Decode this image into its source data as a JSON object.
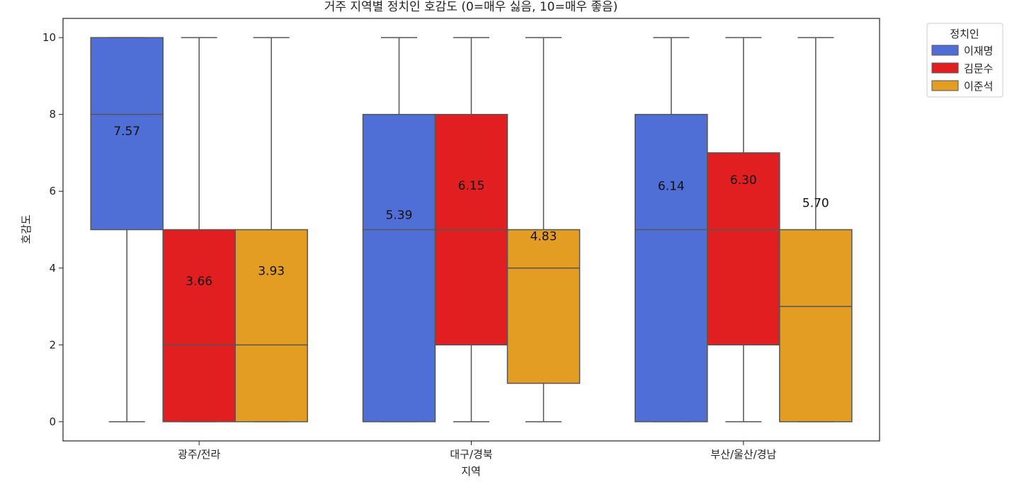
{
  "chart_data": {
    "type": "box",
    "title": "거주 지역별 정치인 호감도 (0=매우 싫음, 10=매우 좋음)",
    "xlabel": "지역",
    "ylabel": "호감도",
    "ylim": [
      -0.5,
      10.5
    ],
    "yticks": [
      "0",
      "2",
      "4",
      "6",
      "8",
      "10"
    ],
    "grid": false,
    "categories": [
      "광주/전라",
      "대구/경북",
      "부산/울산/경남"
    ],
    "legend": {
      "title": "정치인",
      "placement": "outside-top-right"
    },
    "series": [
      {
        "name": "이재명",
        "color": "#4f6fd6",
        "boxes": [
          {
            "min": 0,
            "q1": 5,
            "median": 8,
            "q3": 10,
            "max": 10,
            "mean_label": "7.57",
            "mean": 7.57
          },
          {
            "min": 0,
            "q1": 0,
            "median": 5,
            "q3": 8,
            "max": 10,
            "mean_label": "5.39",
            "mean": 5.39
          },
          {
            "min": 0,
            "q1": 0,
            "median": 5,
            "q3": 8,
            "max": 10,
            "mean_label": "6.14",
            "mean": 6.14
          }
        ]
      },
      {
        "name": "김문수",
        "color": "#e11e20",
        "boxes": [
          {
            "min": 0,
            "q1": 0,
            "median": 2,
            "q3": 5,
            "max": 10,
            "mean_label": "3.66",
            "mean": 3.66
          },
          {
            "min": 0,
            "q1": 2,
            "median": 5,
            "q3": 8,
            "max": 10,
            "mean_label": "6.15",
            "mean": 6.15
          },
          {
            "min": 0,
            "q1": 2,
            "median": 5,
            "q3": 7,
            "max": 10,
            "mean_label": "6.30",
            "mean": 6.3
          }
        ]
      },
      {
        "name": "이준석",
        "color": "#e29d22",
        "boxes": [
          {
            "min": 0,
            "q1": 0,
            "median": 2,
            "q3": 5,
            "max": 10,
            "mean_label": "3.93",
            "mean": 3.93
          },
          {
            "min": 0,
            "q1": 1,
            "median": 4,
            "q3": 5,
            "max": 10,
            "mean_label": "4.83",
            "mean": 4.83
          },
          {
            "min": 0,
            "q1": 0,
            "median": 3,
            "q3": 5,
            "max": 10,
            "mean_label": "5.70",
            "mean": 5.7
          }
        ]
      }
    ]
  }
}
